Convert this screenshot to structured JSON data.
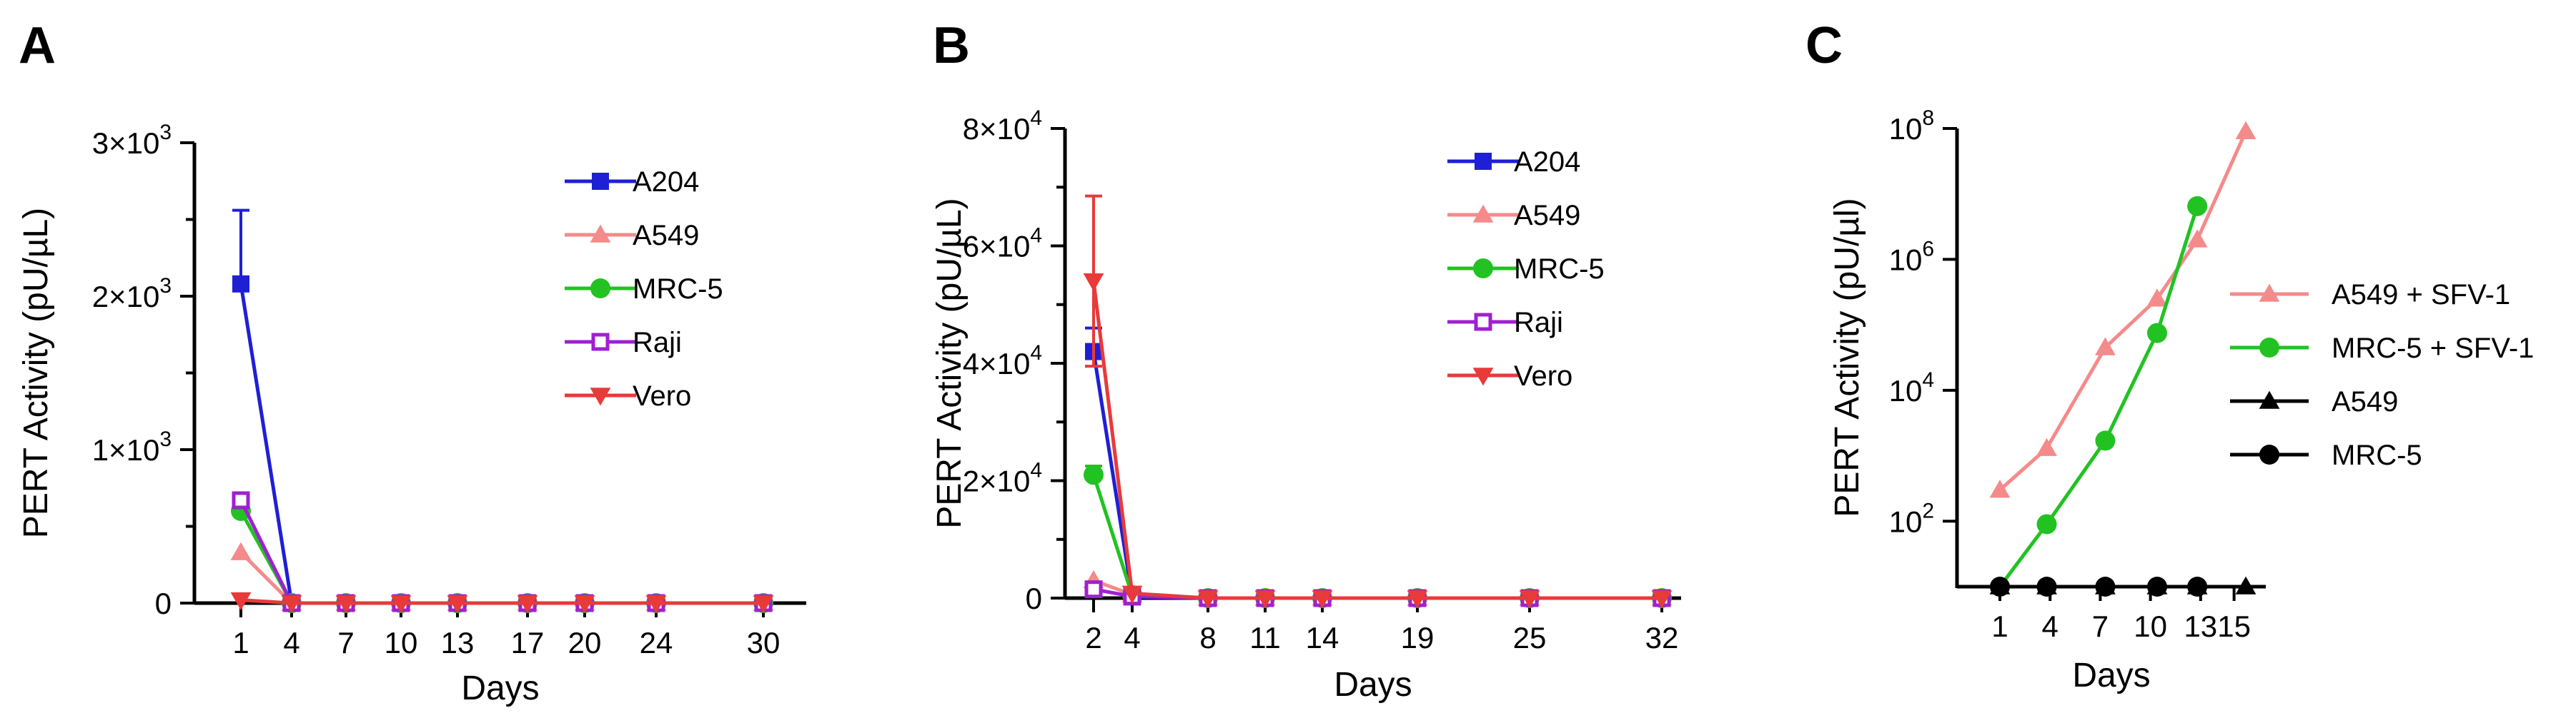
{
  "chart_data": [
    {
      "panel": "A",
      "type": "line",
      "xlabel": "Days",
      "ylabel": "PERT Activity (pU/µL)",
      "x": [
        1,
        4,
        7,
        10,
        13,
        17,
        20,
        24,
        30
      ],
      "ylim": [
        0,
        3000
      ],
      "yscale": "linear",
      "yticks": [
        {
          "v": 0,
          "label": "0"
        },
        {
          "v": 1000,
          "label": "1×10",
          "exp": "3"
        },
        {
          "v": 2000,
          "label": "2×10",
          "exp": "3"
        },
        {
          "v": 3000,
          "label": "3×10",
          "exp": "3"
        }
      ],
      "legend_position": "right",
      "series": [
        {
          "name": "A204",
          "color": "#1f1fd6",
          "marker": "square",
          "values": [
            2080,
            0,
            0,
            0,
            0,
            0,
            0,
            0,
            0
          ],
          "error_up": [
            480,
            0,
            0,
            0,
            0,
            0,
            0,
            0,
            0
          ]
        },
        {
          "name": "A549",
          "color": "#f48a8a",
          "marker": "triangle",
          "values": [
            330,
            0,
            0,
            0,
            0,
            0,
            0,
            0,
            0
          ]
        },
        {
          "name": "MRC-5",
          "color": "#22c222",
          "marker": "circle",
          "values": [
            600,
            0,
            0,
            0,
            0,
            0,
            0,
            0,
            0
          ]
        },
        {
          "name": "Raji",
          "color": "#a020d0",
          "marker": "open-square",
          "values": [
            670,
            0,
            0,
            0,
            0,
            0,
            0,
            0,
            0
          ]
        },
        {
          "name": "Vero",
          "color": "#e83a3a",
          "marker": "triangle-down",
          "values": [
            20,
            0,
            0,
            0,
            0,
            0,
            0,
            0,
            0
          ]
        }
      ]
    },
    {
      "panel": "B",
      "type": "line",
      "xlabel": "Days",
      "ylabel": "PERT Activity (pU/µL)",
      "x": [
        2,
        4,
        8,
        11,
        14,
        19,
        25,
        32
      ],
      "ylim": [
        0,
        80000
      ],
      "yscale": "linear",
      "yticks": [
        {
          "v": 0,
          "label": "0"
        },
        {
          "v": 20000,
          "label": "2×10",
          "exp": "4"
        },
        {
          "v": 40000,
          "label": "4×10",
          "exp": "4"
        },
        {
          "v": 60000,
          "label": "6×10",
          "exp": "4"
        },
        {
          "v": 80000,
          "label": "8×10",
          "exp": "4"
        }
      ],
      "legend_position": "right",
      "series": [
        {
          "name": "A204",
          "color": "#1f1fd6",
          "marker": "square",
          "values": [
            42000,
            200,
            0,
            0,
            0,
            0,
            0,
            0
          ],
          "error_up": [
            4000,
            0,
            0,
            0,
            0,
            0,
            0,
            0
          ]
        },
        {
          "name": "A549",
          "color": "#f48a8a",
          "marker": "triangle",
          "values": [
            3000,
            600,
            0,
            0,
            0,
            0,
            0,
            0
          ]
        },
        {
          "name": "MRC-5",
          "color": "#22c222",
          "marker": "circle",
          "values": [
            21000,
            500,
            0,
            0,
            0,
            0,
            0,
            0
          ],
          "error_up": [
            1500,
            0,
            0,
            0,
            0,
            0,
            0,
            0
          ]
        },
        {
          "name": "Raji",
          "color": "#a020d0",
          "marker": "open-square",
          "values": [
            1500,
            300,
            0,
            0,
            0,
            0,
            0,
            0
          ]
        },
        {
          "name": "Vero",
          "color": "#e83a3a",
          "marker": "triangle-down",
          "values": [
            54000,
            800,
            0,
            0,
            0,
            0,
            0,
            0
          ],
          "error_up": [
            14500,
            0,
            0,
            0,
            0,
            0,
            0,
            0
          ],
          "error_down": [
            14500,
            0,
            0,
            0,
            0,
            0,
            0,
            0
          ]
        }
      ]
    },
    {
      "panel": "C",
      "type": "line",
      "xlabel": "Days",
      "ylabel": "PERT Activity (pU/µl)",
      "x": [
        1,
        4,
        7,
        10,
        13,
        15
      ],
      "yscale": "log",
      "ylim": [
        10,
        100000000
      ],
      "yticks": [
        {
          "v": 100,
          "label": "10",
          "exp": "2"
        },
        {
          "v": 10000,
          "label": "10",
          "exp": "4"
        },
        {
          "v": 1000000,
          "label": "10",
          "exp": "6"
        },
        {
          "v": 100000000,
          "label": "10",
          "exp": "8"
        }
      ],
      "legend_position": "right",
      "series": [
        {
          "name": "A549 + SFV-1",
          "color": "#f48a8a",
          "marker": "triangle",
          "points": [
            [
              1,
              300
            ],
            [
              3.8,
              1300
            ],
            [
              7.3,
              45000
            ],
            [
              10.4,
              250000
            ],
            [
              12.8,
              2000000
            ],
            [
              15.7,
              90000000
            ]
          ]
        },
        {
          "name": "MRC-5 + SFV-1",
          "color": "#22c222",
          "marker": "circle",
          "points": [
            [
              1,
              10
            ],
            [
              3.8,
              90
            ],
            [
              7.3,
              1700
            ],
            [
              10.4,
              75000
            ],
            [
              12.8,
              6500000
            ]
          ]
        },
        {
          "name": "A549",
          "color": "#000000",
          "marker": "triangle",
          "points": [
            [
              1,
              10
            ],
            [
              3.8,
              10
            ],
            [
              7.3,
              10
            ],
            [
              10.4,
              10
            ],
            [
              12.8,
              10
            ],
            [
              15.7,
              10
            ]
          ]
        },
        {
          "name": "MRC-5",
          "color": "#000000",
          "marker": "circle",
          "points": [
            [
              1,
              10
            ],
            [
              3.8,
              10
            ],
            [
              7.3,
              10
            ],
            [
              10.4,
              10
            ],
            [
              12.8,
              10
            ]
          ]
        }
      ]
    }
  ]
}
